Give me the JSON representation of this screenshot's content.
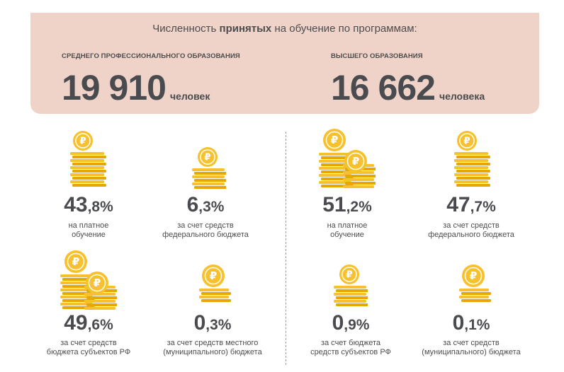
{
  "header": {
    "title_before": "Численность ",
    "title_bold": "принятых",
    "title_after": " на обучение по программам:",
    "spo": {
      "label": "СРЕДНЕГО ПРОФЕССИОНАЛЬНОГО ОБРАЗОВАНИЯ",
      "number": "19 910",
      "unit": "человек"
    },
    "vo": {
      "label": "ВЫСШЕГО ОБРАЗОВАНИЯ",
      "number": "16 662",
      "unit": "человека"
    }
  },
  "colors": {
    "header_bg": "#f0d3c8",
    "coin": "#f7c12e",
    "coin_dark": "#e6a800",
    "text": "#4a4b4f"
  },
  "spo_stats": [
    {
      "int": "43",
      "frac": ",8%",
      "line1": "на платное",
      "line2": "обучение",
      "icon": "large-coin-stack-icon"
    },
    {
      "int": "6",
      "frac": ",3%",
      "line1": "за счет средств",
      "line2": "федерального бюджета",
      "icon": "small-coin-stack-icon"
    },
    {
      "int": "49",
      "frac": ",6%",
      "line1": "за счет средств",
      "line2": "бюджета субъектов РФ",
      "icon": "double-coin-stack-icon"
    },
    {
      "int": "0",
      "frac": ",3%",
      "line1": "за счет средств местного",
      "line2": "(муниципального) бюджета",
      "icon": "tiny-coin-stack-icon"
    }
  ],
  "vo_stats": [
    {
      "int": "51",
      "frac": ",2%",
      "line1": "на платное",
      "line2": "обучение",
      "icon": "double-coin-stack-icon"
    },
    {
      "int": "47",
      "frac": ",7%",
      "line1": "за счет средств",
      "line2": "федерального бюджета",
      "icon": "large-coin-stack-icon"
    },
    {
      "int": "0",
      "frac": ",9%",
      "line1": "за счет бюджета",
      "line2": "средств субъектов РФ",
      "icon": "small-coin-stack-icon"
    },
    {
      "int": "0",
      "frac": ",1%",
      "line1": "за счет средств",
      "line2": "(муниципального) бюджета",
      "icon": "tiny-coin-stack-icon"
    }
  ]
}
